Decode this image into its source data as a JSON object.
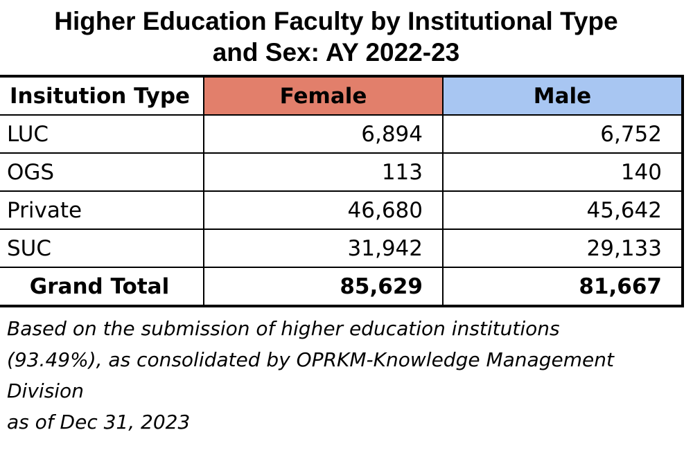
{
  "chart_data": {
    "type": "table",
    "title_lines": [
      "Higher Education Faculty by Institutional Type",
      "and Sex: AY 2022-23"
    ],
    "columns": [
      "Insitution Type",
      "Female",
      "Male"
    ],
    "rows": [
      {
        "label": "LUC",
        "female": "6,894",
        "male": "6,752"
      },
      {
        "label": "OGS",
        "female": "113",
        "male": "140"
      },
      {
        "label": "Private",
        "female": "46,680",
        "male": "45,642"
      },
      {
        "label": "SUC",
        "female": "31,942",
        "male": "29,133"
      }
    ],
    "total": {
      "label": "Grand Total",
      "female": "85,629",
      "male": "81,667"
    },
    "header_colors": {
      "female": "#e27f6b",
      "male": "#a8c6f2"
    }
  },
  "note_lines": [
    "Based on the submission of higher education institutions",
    "(93.49%), as consolidated by OPRKM-Knowledge Management",
    "Division",
    "as of Dec 31, 2023"
  ]
}
